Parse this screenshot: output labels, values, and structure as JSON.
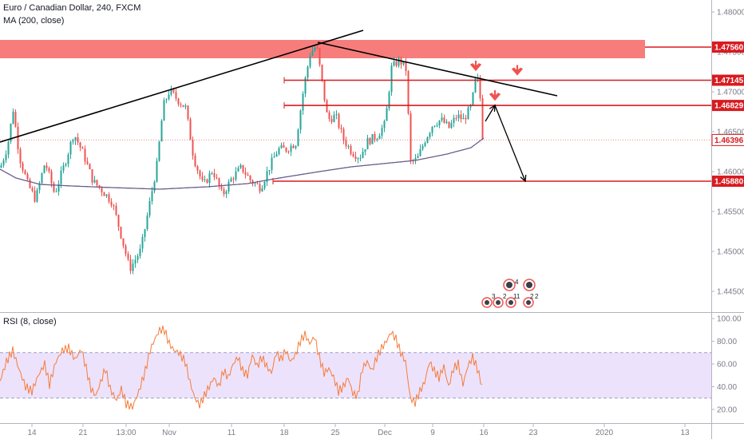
{
  "header": {
    "title": "Euro / Canadian Dollar, 240, FXCM",
    "ma_label": "MA (200, close)",
    "rsi_label": "RSI (8, close)"
  },
  "colors": {
    "up": "#26a69a",
    "down": "#ef5350",
    "ma": "#6a5d8c",
    "rsi": "#f57c3a",
    "level": "#d81b20",
    "zone": "#f77676",
    "trend": "#000000",
    "rsi_band": "#ede2fb",
    "last_price": "#ef5350"
  },
  "chart_data": [
    {
      "type": "candlestick",
      "title": "Euro / Canadian Dollar, 240, FXCM",
      "ylim": [
        1.4425,
        1.4815
      ],
      "y_ticks": [
        1.445,
        1.45,
        1.455,
        1.46,
        1.465,
        1.47,
        1.475,
        1.48
      ],
      "y_tick_labels": [
        "1.44500",
        "1.45000",
        "1.45500",
        "1.46000",
        "1.46500",
        "1.47000",
        "1.47500",
        "1.48000"
      ],
      "x_ticks": [
        "14",
        "21",
        "13:00",
        "Nov",
        "11",
        "18",
        "25",
        "Dec",
        "9",
        "16",
        "23",
        "2020",
        "13"
      ],
      "price_path": [
        [
          0,
          1.4605
        ],
        [
          9,
          1.4632
        ],
        [
          16,
          1.4678
        ],
        [
          24,
          1.4618
        ],
        [
          34,
          1.4585
        ],
        [
          44,
          1.4565
        ],
        [
          56,
          1.4612
        ],
        [
          68,
          1.4572
        ],
        [
          80,
          1.4608
        ],
        [
          92,
          1.4648
        ],
        [
          104,
          1.4622
        ],
        [
          116,
          1.4588
        ],
        [
          126,
          1.4578
        ],
        [
          140,
          1.4562
        ],
        [
          150,
          1.4525
        ],
        [
          162,
          1.4478
        ],
        [
          176,
          1.4502
        ],
        [
          186,
          1.4555
        ],
        [
          196,
          1.4608
        ],
        [
          204,
          1.4682
        ],
        [
          212,
          1.4702
        ],
        [
          222,
          1.469
        ],
        [
          232,
          1.468
        ],
        [
          242,
          1.4618
        ],
        [
          254,
          1.4582
        ],
        [
          266,
          1.4602
        ],
        [
          278,
          1.457
        ],
        [
          290,
          1.4592
        ],
        [
          302,
          1.4605
        ],
        [
          314,
          1.4588
        ],
        [
          326,
          1.458
        ],
        [
          338,
          1.4608
        ],
        [
          348,
          1.4628
        ],
        [
          358,
          1.4628
        ],
        [
          370,
          1.4636
        ],
        [
          380,
          1.4705
        ],
        [
          388,
          1.4748
        ],
        [
          396,
          1.4758
        ],
        [
          404,
          1.4705
        ],
        [
          410,
          1.4665
        ],
        [
          420,
          1.467
        ],
        [
          430,
          1.464
        ],
        [
          440,
          1.4625
        ],
        [
          450,
          1.4618
        ],
        [
          460,
          1.4638
        ],
        [
          472,
          1.4645
        ],
        [
          482,
          1.466
        ],
        [
          490,
          1.473
        ],
        [
          500,
          1.474
        ],
        [
          508,
          1.4728
        ],
        [
          514,
          1.4612
        ],
        [
          522,
          1.4615
        ],
        [
          532,
          1.464
        ],
        [
          542,
          1.466
        ],
        [
          552,
          1.4665
        ],
        [
          562,
          1.4655
        ],
        [
          572,
          1.467
        ],
        [
          580,
          1.4665
        ],
        [
          590,
          1.4682
        ],
        [
          596,
          1.472
        ],
        [
          600,
          1.4708
        ],
        [
          604,
          1.4645
        ],
        [
          606,
          1.464
        ]
      ],
      "ma200": [
        [
          0,
          1.4603
        ],
        [
          20,
          1.4592
        ],
        [
          50,
          1.4584
        ],
        [
          90,
          1.4582
        ],
        [
          140,
          1.458
        ],
        [
          200,
          1.4578
        ],
        [
          260,
          1.4581
        ],
        [
          310,
          1.4585
        ],
        [
          350,
          1.4592
        ],
        [
          400,
          1.46
        ],
        [
          440,
          1.4606
        ],
        [
          480,
          1.461
        ],
        [
          520,
          1.4614
        ],
        [
          560,
          1.4622
        ],
        [
          590,
          1.463
        ],
        [
          606,
          1.4642
        ]
      ],
      "last_price": 1.46396,
      "last_price_label": "1.46396",
      "levels": [
        {
          "value": 1.4756,
          "label": "1.47560"
        },
        {
          "value": 1.47145,
          "label": "1.47145"
        },
        {
          "value": 1.46829,
          "label": "1.46829"
        },
        {
          "value": 1.4588,
          "label": "1.45880"
        }
      ],
      "resistance_zone": [
        1.4742,
        1.4765
      ],
      "trendlines": [
        {
          "from": [
            0,
            1.4637
          ],
          "to": [
            455,
            1.4777
          ]
        },
        {
          "from": [
            398,
            1.4762
          ],
          "to": [
            698,
            1.4695
          ]
        }
      ],
      "projection": [
        [
          608,
          1.4663
        ],
        [
          620,
          1.4683
        ],
        [
          658,
          1.4588
        ]
      ],
      "sell_markers": [
        {
          "x": 596,
          "value": 1.472
        },
        {
          "x": 648,
          "value": 1.47145
        },
        {
          "x": 620,
          "value": 1.46829
        }
      ],
      "event_icons": [
        "4",
        "3",
        "2",
        "11",
        "2",
        "2"
      ]
    },
    {
      "type": "line",
      "title": "RSI (8, close)",
      "ylim": [
        8,
        105
      ],
      "y_ticks": [
        20,
        40,
        60,
        80,
        100
      ],
      "y_tick_labels": [
        "20.00",
        "40.00",
        "60.00",
        "80.00",
        "100.00"
      ],
      "band": [
        30,
        70
      ],
      "values": [
        [
          0,
          45
        ],
        [
          8,
          62
        ],
        [
          16,
          72
        ],
        [
          24,
          55
        ],
        [
          32,
          40
        ],
        [
          40,
          36
        ],
        [
          48,
          50
        ],
        [
          56,
          60
        ],
        [
          62,
          42
        ],
        [
          70,
          62
        ],
        [
          78,
          72
        ],
        [
          86,
          74
        ],
        [
          94,
          64
        ],
        [
          102,
          73
        ],
        [
          108,
          56
        ],
        [
          114,
          38
        ],
        [
          120,
          32
        ],
        [
          126,
          44
        ],
        [
          132,
          56
        ],
        [
          138,
          38
        ],
        [
          146,
          28
        ],
        [
          152,
          38
        ],
        [
          158,
          25
        ],
        [
          166,
          22
        ],
        [
          174,
          36
        ],
        [
          182,
          54
        ],
        [
          188,
          72
        ],
        [
          194,
          82
        ],
        [
          200,
          90
        ],
        [
          206,
          90
        ],
        [
          212,
          78
        ],
        [
          218,
          72
        ],
        [
          224,
          70
        ],
        [
          232,
          62
        ],
        [
          238,
          44
        ],
        [
          244,
          30
        ],
        [
          250,
          24
        ],
        [
          256,
          32
        ],
        [
          262,
          40
        ],
        [
          268,
          48
        ],
        [
          274,
          40
        ],
        [
          280,
          54
        ],
        [
          286,
          48
        ],
        [
          292,
          60
        ],
        [
          298,
          66
        ],
        [
          304,
          54
        ],
        [
          310,
          50
        ],
        [
          316,
          68
        ],
        [
          322,
          58
        ],
        [
          328,
          66
        ],
        [
          334,
          58
        ],
        [
          340,
          52
        ],
        [
          346,
          70
        ],
        [
          352,
          64
        ],
        [
          358,
          72
        ],
        [
          364,
          62
        ],
        [
          370,
          68
        ],
        [
          376,
          80
        ],
        [
          382,
          86
        ],
        [
          388,
          78
        ],
        [
          394,
          84
        ],
        [
          400,
          66
        ],
        [
          406,
          52
        ],
        [
          412,
          56
        ],
        [
          418,
          48
        ],
        [
          424,
          36
        ],
        [
          430,
          40
        ],
        [
          436,
          48
        ],
        [
          442,
          34
        ],
        [
          448,
          32
        ],
        [
          454,
          56
        ],
        [
          460,
          62
        ],
        [
          466,
          54
        ],
        [
          472,
          66
        ],
        [
          478,
          74
        ],
        [
          484,
          80
        ],
        [
          490,
          88
        ],
        [
          496,
          82
        ],
        [
          502,
          70
        ],
        [
          508,
          62
        ],
        [
          514,
          30
        ],
        [
          520,
          26
        ],
        [
          526,
          36
        ],
        [
          532,
          44
        ],
        [
          538,
          62
        ],
        [
          544,
          54
        ],
        [
          550,
          48
        ],
        [
          556,
          58
        ],
        [
          562,
          40
        ],
        [
          568,
          56
        ],
        [
          574,
          60
        ],
        [
          580,
          42
        ],
        [
          586,
          58
        ],
        [
          592,
          66
        ],
        [
          598,
          56
        ],
        [
          604,
          40
        ]
      ]
    }
  ]
}
